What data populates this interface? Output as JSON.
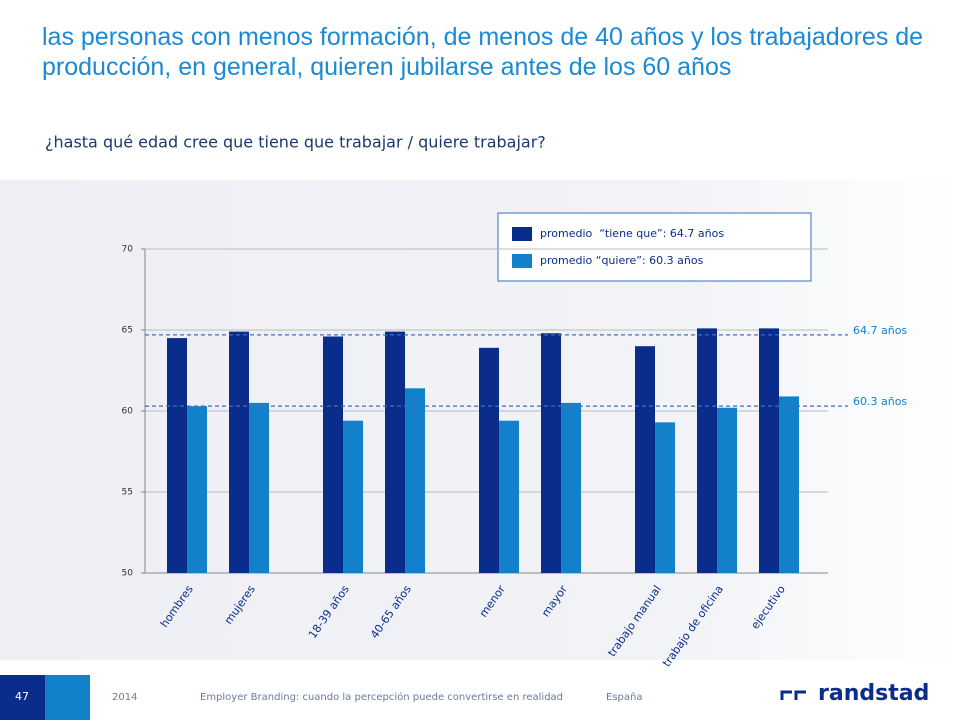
{
  "slide": {
    "title": "las personas con menos formación, de menos de 40 años y los trabajadores de producción, en general, quieren jubilarse antes de los 60 años",
    "subtitle": "¿hasta qué edad cree que tiene que trabajar / quiere trabajar?",
    "page_number": "47",
    "year": "2014",
    "footer_text": "Employer Branding: cuando la percepción puede convertirse en realidad",
    "country": "España",
    "logo": "randstad"
  },
  "chart_data": {
    "type": "bar",
    "categories": [
      "hombres",
      "mujeres",
      "18-39 años",
      "40-65 años",
      "menor",
      "mayor",
      "trabajo manual",
      "trabajo de oficina",
      "ejecutivo"
    ],
    "series": [
      {
        "name": "promedio  “tiene que”: 64.7 años",
        "color": "#0a2d8c",
        "values": [
          64.5,
          64.9,
          64.6,
          64.9,
          63.9,
          64.8,
          64.0,
          65.1,
          65.1
        ]
      },
      {
        "name": "promedio “quiere”: 60.3 años",
        "color": "#1380cc",
        "values": [
          60.3,
          60.5,
          59.4,
          61.4,
          59.4,
          60.5,
          59.3,
          60.2,
          60.9
        ]
      }
    ],
    "reference_lines": [
      {
        "value": 64.7,
        "label": "64.7 años"
      },
      {
        "value": 60.3,
        "label": "60.3 años"
      }
    ],
    "ylim": [
      50,
      70
    ],
    "yticks": [
      50,
      55,
      60,
      65,
      70
    ],
    "grid": true
  }
}
